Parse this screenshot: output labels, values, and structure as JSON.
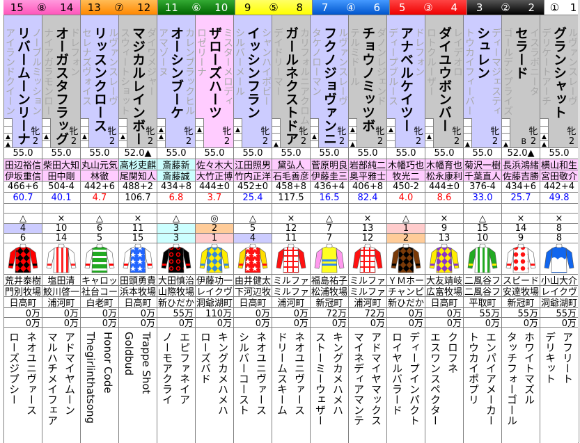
{
  "colors": {
    "lavender": "#ccccff",
    "grey": "#c8c8c8",
    "pink": "#ffccff",
    "cyan": "#ccffff",
    "orange": "#ffcc99",
    "rose": "#ffcccc",
    "odds_red": "#ff0000",
    "odds_blue": "#0000ff"
  },
  "gates": [
    {
      "label": "⑧",
      "numbers": [
        "15",
        "14"
      ],
      "bg": "linear-gradient(#ff99dd,#ff55bb)",
      "fg": "#000",
      "span": 2
    },
    {
      "label": "⑦",
      "numbers": [
        "13",
        "12"
      ],
      "bg": "linear-gradient(#ffbb55,#ff8800)",
      "fg": "#000",
      "span": 2
    },
    {
      "label": "⑥",
      "numbers": [
        "11",
        "10"
      ],
      "bg": "linear-gradient(#33aa33,#006600)",
      "fg": "#fff",
      "span": 2
    },
    {
      "label": "⑤",
      "numbers": [
        "9",
        "8"
      ],
      "bg": "linear-gradient(#ffff66,#ffff00)",
      "fg": "#000",
      "span": 2
    },
    {
      "label": "④",
      "numbers": [
        "7",
        "6"
      ],
      "bg": "linear-gradient(#4499ff,#0055cc)",
      "fg": "#fff",
      "span": 2
    },
    {
      "label": "③",
      "numbers": [
        "5",
        "4"
      ],
      "bg": "linear-gradient(#ff4444,#ee0000)",
      "fg": "#fff",
      "span": 2
    },
    {
      "label": "②",
      "numbers": [
        "3",
        "2"
      ],
      "bg": "linear-gradient(#555,#000)",
      "fg": "#fff",
      "span": 2
    },
    {
      "label": "①",
      "numbers": [
        "",
        "1"
      ],
      "bg": "#ffffff",
      "fg": "#000",
      "span": 1
    }
  ],
  "horses": [
    {
      "no": "15",
      "name": "リバームーンリーナ",
      "sire": "ノーブルミッション",
      "dam": "アイランドクイーン",
      "sex": "牝",
      "age": "2",
      "marks": [
        "",
        "",
        "▲",
        "▲"
      ],
      "blinker": "",
      "bg": "lavender",
      "weight": "55.0",
      "jockey": "田辺裕信",
      "jbg": "pink",
      "trainer": "伊坂重信",
      "tbg": "pink",
      "body": "466+6",
      "odds": "60.7",
      "mark": "△",
      "rank1": "4",
      "r1bg": "lavender",
      "rank2": "6",
      "r2bg": "",
      "silk": {
        "body": "#000",
        "pattern": "diamonds",
        "pc": "#ff0000",
        "sleeve": "#ff0000",
        "sp": "#000"
      },
      "owner": "荒井泰樹",
      "breeder": "門別牧場",
      "region": "日高町",
      "prize1": "0万",
      "prize2": "0万",
      "bms": "ネオユニヴァース",
      "gdam": "ローズジプシー"
    },
    {
      "no": "14",
      "name": "オーガスタフラッグ",
      "sire": "ドレフォン",
      "dam": "ナイアガラモンロー",
      "sex": "牝",
      "age": "2",
      "marks": [
        "",
        "",
        "▲",
        ""
      ],
      "blinker": "",
      "bg": "grey",
      "weight": "55.0",
      "jockey": "柴田大知",
      "jbg": "pink",
      "trainer": "田中剛",
      "tbg": "pink",
      "body": "504-4",
      "odds": "40.1",
      "mark": "×",
      "rank1": "10",
      "r1bg": "",
      "rank2": "14",
      "r2bg": "",
      "silk": {
        "body": "#fff",
        "pattern": "stripes",
        "pc": "#ff2222",
        "sleeve": "#fff",
        "sp": "#ff2222"
      },
      "owner": "塩田清",
      "breeder": "鮫川啓一",
      "region": "浦河町",
      "prize1": "0万",
      "prize2": "0万",
      "bms": "アドマイヤムーン",
      "gdam": "マルハチメイフェア"
    },
    {
      "no": "13",
      "name": "リッスンクロース",
      "sire": "ルヴァンスレーヴ",
      "dam": "セレナズヴォイス",
      "sex": "牝",
      "age": "2",
      "marks": [
        "",
        "",
        "▲",
        ""
      ],
      "blinker": "",
      "bg": "lavender",
      "weight": "55.0",
      "jockey": "丸山元気",
      "jbg": "pink",
      "trainer": "林徹",
      "tbg": "pink",
      "body": "442+6",
      "odds": "4.7",
      "mark": "△",
      "rank1": "6",
      "r1bg": "",
      "rank2": "5",
      "r2bg": "",
      "silk": {
        "body": "#22aa22",
        "pattern": "hoops",
        "pc": "#fff",
        "sleeve": "#fff",
        "sp": "#ff0000"
      },
      "owner": "キャロッ",
      "breeder": "社台コー",
      "region": "白老町",
      "prize1": "0万",
      "prize2": "0万",
      "bms": "Honor Code",
      "gdam": "Thegirlinthatsong"
    },
    {
      "no": "12",
      "name": "マジカルレインボー",
      "sire": "ダイワメジャー",
      "dam": "スウィートショット",
      "sex": "牝",
      "age": "2",
      "marks": [
        "",
        "",
        "▲",
        ""
      ],
      "blinker": "",
      "bg": "grey",
      "weight": "52.0▲",
      "jockey": "高杉吏麒",
      "jbg": "cyan",
      "trainer": "尾関知人",
      "tbg": "pink",
      "body": "488+2",
      "odds": "106.7",
      "mark": "×",
      "rank1": "11",
      "r1bg": "",
      "rank2": "15",
      "r2bg": "",
      "silk": {
        "body": "#2266ff",
        "pattern": "stars",
        "pc": "#fff",
        "sleeve": "#fff",
        "sp": "#ff0000"
      },
      "owner": "田頭勇貴",
      "breeder": "浜本牧場",
      "region": "日高町",
      "prize1": "0万",
      "prize2": "0万",
      "bms": "Trappe Shot",
      "gdam": "Goldbud"
    },
    {
      "no": "11",
      "name": "オーシンブーケ",
      "sire": "カレンブラックヒル",
      "dam": "アマゾーヌ",
      "sex": "牝",
      "age": "2",
      "marks": [
        "",
        "▲",
        "▲",
        ""
      ],
      "blinker": "",
      "bg": "lavender",
      "weight": "55.0",
      "jockey": "斎藤新",
      "jbg": "cyan",
      "trainer": "斎藤誠",
      "tbg": "cyan",
      "body": "434+8",
      "odds": "6.8",
      "mark": "△",
      "rank1": "3",
      "r1bg": "cyan",
      "rank2": "3",
      "r2bg": "cyan",
      "silk": {
        "body": "#000",
        "pattern": "rings",
        "pc": "#ff0000",
        "sleeve": "#000",
        "sp": "#ff0000"
      },
      "owner": "大田慎治",
      "breeder": "山際牧場",
      "region": "新ひだか",
      "prize1": "55万",
      "prize2": "0万",
      "bms": "エピファネイア",
      "gdam": "ノーモアクライ"
    },
    {
      "no": "10",
      "name": "ザローズハーツ",
      "sire": "ミスターメロディ",
      "dam": "ロゼリーナ",
      "sex": "牝",
      "age": "2",
      "marks": [
        "",
        "▲",
        "",
        ""
      ],
      "blinker": "",
      "bg": "pink",
      "weight": "55.0",
      "jockey": "佐々木大",
      "jbg": "pink",
      "trainer": "大竹正博",
      "tbg": "pink",
      "body": "444±0",
      "odds": "3.7",
      "mark": "◎",
      "rank1": "2",
      "r1bg": "orange",
      "rank2": "1",
      "r2bg": "rose",
      "silk": {
        "body": "#ffee00",
        "pattern": "diamonds",
        "pc": "#3388dd",
        "sleeve": "#ffee00",
        "sp": "#3388dd"
      },
      "owner": "伊藤功一",
      "breeder": "レイクヴ",
      "region": "洞爺湖町",
      "prize1": "110万",
      "prize2": "0万",
      "bms": "キングカメハメハ",
      "gdam": "ローズバド"
    },
    {
      "no": "9",
      "name": "イッシンフラン",
      "sire": "シャンハイボビー",
      "dam": "シルバーメール",
      "sex": "牝",
      "age": "2",
      "marks": [
        "",
        "▲",
        "",
        ""
      ],
      "blinker": "",
      "bg": "lavender",
      "weight": "55.0",
      "jockey": "江田照男",
      "jbg": "pink",
      "trainer": "竹内正洋",
      "tbg": "pink",
      "body": "452±0",
      "odds": "25.4",
      "mark": "△",
      "rank1": "5",
      "r1bg": "",
      "rank2": "4",
      "r2bg": "lavender",
      "silk": {
        "body": "#ff1111",
        "pattern": "stars",
        "pc": "#fff",
        "sleeve": "#ffdd00",
        "sp": "#ff1111"
      },
      "owner": "由井健太",
      "breeder": "下河辺牧",
      "region": "日高町",
      "prize1": "0万",
      "prize2": "0万",
      "bms": "ネオユニヴァース",
      "gdam": "シルバーコースト"
    },
    {
      "no": "8",
      "name": "ガールネクストドア",
      "sire": "カリフォルニアクロム",
      "dam": "デイドリーマー",
      "sex": "牝",
      "age": "2",
      "marks": [
        "",
        "",
        "",
        "▲"
      ],
      "blinker": "",
      "bg": "grey",
      "weight": "55.0",
      "jockey": "黛弘人",
      "jbg": "pink",
      "trainer": "石毛善彦",
      "tbg": "pink",
      "body": "458+8",
      "odds": "117.5",
      "mark": "×",
      "rank1": "12",
      "r1bg": "",
      "rank2": "11",
      "r2bg": "",
      "silk": {
        "body": "#ff1111",
        "pattern": "check",
        "pc": "#fff",
        "sleeve": "#ff1111",
        "sp": "#ff1111"
      },
      "owner": "ミルファ",
      "breeder": "ミルファ",
      "region": "浦河町",
      "prize1": "0万",
      "prize2": "0万",
      "bms": "ネオユニヴァース",
      "gdam": "ドリームスキーム"
    },
    {
      "no": "7",
      "name": "フクノジョヴァンニ",
      "sire": "ルヴァンスレーヴ",
      "dam": "タケノローマン",
      "sex": "牝",
      "age": "2",
      "marks": [
        "",
        "",
        "▲",
        ""
      ],
      "blinker": "",
      "bg": "lavender",
      "weight": "55.0",
      "jockey": "菅原明良",
      "jbg": "pink",
      "trainer": "伊藤圭三",
      "tbg": "pink",
      "body": "436+4",
      "odds": "16.5",
      "mark": "△",
      "rank1": "7",
      "r1bg": "",
      "rank2": "7",
      "r2bg": "",
      "silk": {
        "body": "#ffff22",
        "pattern": "band",
        "pc": "#3388ee",
        "sleeve": "#ff99ee",
        "sp": "#ff99ee"
      },
      "owner": "福島祐子",
      "breeder": "松浦牧場",
      "region": "新冠町",
      "prize1": "72万",
      "prize2": "0万",
      "bms": "キングカメハメハ",
      "gdam": "ストーミーウェザー"
    },
    {
      "no": "6",
      "name": "チョウノミッツボ",
      "sire": "ダノンレジェンド",
      "dam": "テルミドール",
      "sex": "牝",
      "age": "2",
      "marks": [
        "",
        "▲",
        "",
        "▲"
      ],
      "blinker": "",
      "bg": "grey",
      "weight": "55.0",
      "jockey": "岩部純二",
      "jbg": "pink",
      "trainer": "奥平雅士",
      "tbg": "pink",
      "body": "406+8",
      "odds": "82.4",
      "mark": "×",
      "rank1": "13",
      "r1bg": "",
      "rank2": "12",
      "r2bg": "",
      "silk": {
        "body": "#ff1111",
        "pattern": "check",
        "pc": "#fff",
        "sleeve": "#ff1111",
        "sp": "#ff1111"
      },
      "owner": "ミルファ",
      "breeder": "ミルファ",
      "region": "浦河町",
      "prize1": "72万",
      "prize2": "0万",
      "bms": "アドマイヤマックス",
      "gdam": "マイネディアマンテ"
    },
    {
      "no": "5",
      "name": "アナベルケイツー",
      "sire": "ドレフォン",
      "dam": "ディープブルース",
      "sex": "牝",
      "age": "2",
      "marks": [
        "",
        "▲",
        "",
        ""
      ],
      "blinker": "",
      "bg": "lavender",
      "weight": "55.0",
      "jockey": "木幡巧也",
      "jbg": "pink",
      "trainer": "牧光二",
      "tbg": "pink",
      "body": "450-2",
      "odds": "4.0",
      "mark": "△",
      "rank1": "1",
      "r1bg": "rose",
      "rank2": "2",
      "r2bg": "orange",
      "silk": {
        "body": "#7a3a08",
        "pattern": "diamonds",
        "pc": "#000",
        "sleeve": "#7a3a08",
        "sp": "#000"
      },
      "owner": "ＹＭホー",
      "breeder": "チャンピ",
      "region": "新ひだか",
      "prize1": "0万",
      "prize2": "0万",
      "bms": "ディープインパクト",
      "gdam": "ロイヤルバラード"
    },
    {
      "no": "4",
      "name": "ダイユウボンバー",
      "sire": "レイデオロ",
      "dam": "ロトクルーザー",
      "sex": "牝",
      "age": "2",
      "marks": [
        "",
        "",
        "▲",
        ""
      ],
      "blinker": "",
      "bg": "grey",
      "weight": "55.0",
      "jockey": "木幡育也",
      "jbg": "pink",
      "trainer": "松永康利",
      "tbg": "pink",
      "body": "444±0",
      "odds": "8.6",
      "mark": "×",
      "rank1": "9",
      "r1bg": "",
      "rank2": "13",
      "r2bg": "",
      "silk": {
        "body": "#ffee00",
        "pattern": "diamonds",
        "pc": "#8833cc",
        "sleeve": "#ffee00",
        "sp": "#8833cc"
      },
      "owner": "大友靖岐",
      "breeder": "広富牧場",
      "region": "日高町",
      "prize1": "0万",
      "prize2": "0万",
      "bms": "クロフネ",
      "gdam": "エスワンスペクター"
    },
    {
      "no": "3",
      "name": "シュレン",
      "sire": "ディーマジェスティ",
      "dam": "トウカイフィーバー",
      "sex": "牝",
      "age": "2",
      "marks": [
        "",
        "",
        "",
        "▲"
      ],
      "blinker": "",
      "bg": "lavender",
      "weight": "55.0",
      "jockey": "菊沢一樹",
      "jbg": "pink",
      "trainer": "千葉直人",
      "tbg": "pink",
      "body": "376-4",
      "odds": "33.0",
      "mark": "△",
      "rank1": "15",
      "r1bg": "",
      "rank2": "10",
      "r2bg": "",
      "silk": {
        "body": "#fff",
        "pattern": "stripes",
        "pc": "#22aa22",
        "sleeve": "#22aa22",
        "sp": "#ffee00"
      },
      "owner": "二風谷フ",
      "breeder": "二風谷フ",
      "region": "平取町",
      "prize1": "55万",
      "prize2": "0万",
      "bms": "エンパイアメーカー",
      "gdam": "トウカイポプリ"
    },
    {
      "no": "2",
      "name": "セラード",
      "sire": "イスラボニータ",
      "dam": "ゴールデンプライズ",
      "sex": "牝",
      "age": "2",
      "marks": [
        "",
        "",
        "",
        "▲"
      ],
      "blinker": "B",
      "bg": "grey",
      "weight": "52.0▲",
      "jockey": "長浜鴻緒",
      "jbg": "pink",
      "trainer": "佐藤吉勝",
      "tbg": "pink",
      "body": "434+6",
      "odds": "25.7",
      "mark": "×",
      "rank1": "14",
      "r1bg": "",
      "rank2": "9",
      "r2bg": "",
      "silk": {
        "body": "#fff",
        "pattern": "dots",
        "pc": "#ff1111",
        "sleeve": "#fff",
        "sp": "#ff1111"
      },
      "owner": "スピード",
      "breeder": "安達牧場",
      "region": "新冠町",
      "prize1": "55万",
      "prize2": "0万",
      "bms": "ホワイトマズル",
      "gdam": "タッチフォーゴール"
    },
    {
      "no": "1",
      "name": "グランシャット",
      "sire": "ルヴァンスレーヴ",
      "dam": "デリケートアーチ",
      "sex": "牝",
      "age": "2",
      "marks": [
        "",
        "",
        "▲",
        "▲"
      ],
      "blinker": "",
      "bg": "grey",
      "weight": "55.0",
      "jockey": "横山和生",
      "jbg": "pink",
      "trainer": "宮田敬介",
      "tbg": "pink",
      "body": "442+4",
      "odds": "49.8",
      "mark": "×",
      "rank1": "8",
      "r1bg": "",
      "rank2": "8",
      "r2bg": "",
      "silk": {
        "body": "#1166ee",
        "pattern": "wave",
        "pc": "#fff",
        "sleeve": "#1166ee",
        "sp": "#1166ee"
      },
      "owner": "小山大介",
      "breeder": "レイクヴ",
      "region": "洞爺湖町",
      "prize1": "55万",
      "prize2": "0万",
      "bms": "アフリート",
      "gdam": "デリキット"
    }
  ]
}
